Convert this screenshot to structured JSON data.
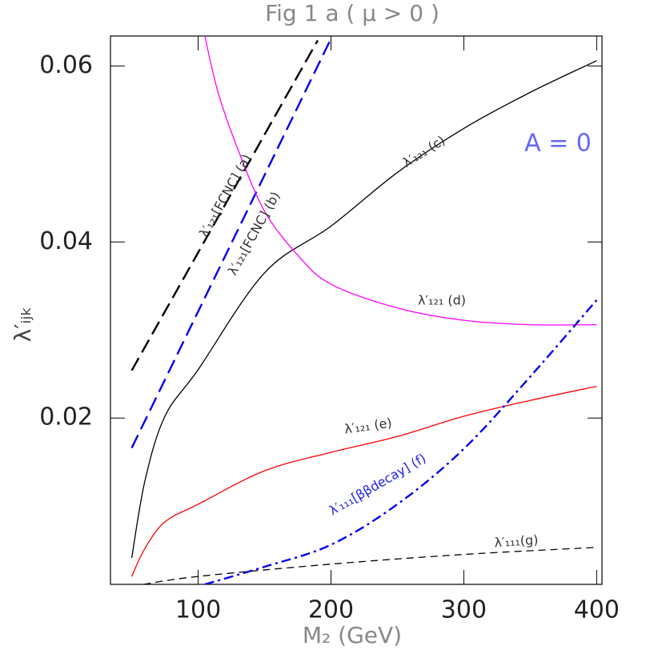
{
  "chart_data": {
    "type": "line",
    "title": "Fig 1 a ( μ > 0 )",
    "x_label": "M₂ (GeV)",
    "y_label": "λ′ᵢⱼₖ",
    "xlim": [
      34,
      404
    ],
    "ylim": [
      0.0011,
      0.0634
    ],
    "xticks": [
      100,
      200,
      300,
      400
    ],
    "yticks": [
      {
        "value": 0.02,
        "label": "0.02"
      },
      {
        "value": 0.04,
        "label": "0.04"
      },
      {
        "value": 0.06,
        "label": "0.06"
      }
    ],
    "series": [
      {
        "color": "#000000",
        "linestyle": "longdash",
        "x": [
          50,
          100,
          150,
          190
        ],
        "values": [
          0.0254,
          0.0388,
          0.0522,
          0.0629
        ]
      },
      {
        "color": "#0000ee",
        "linestyle": "longdash",
        "x": [
          50,
          100,
          150,
          200
        ],
        "values": [
          0.0166,
          0.0321,
          0.0476,
          0.0631
        ]
      },
      {
        "color": "#000000",
        "linestyle": "solid",
        "x": [
          50,
          60,
          75,
          100,
          150,
          200,
          250,
          300,
          350,
          400
        ],
        "values": [
          0.0041,
          0.0129,
          0.0202,
          0.0255,
          0.0365,
          0.0418,
          0.0479,
          0.0529,
          0.057,
          0.0606
        ]
      },
      {
        "color": "#ff00ff",
        "linestyle": "solid",
        "x": [
          105,
          115,
          130,
          150,
          175,
          200,
          250,
          300,
          350,
          400
        ],
        "values": [
          0.0634,
          0.057,
          0.0505,
          0.0435,
          0.0385,
          0.0352,
          0.0325,
          0.0311,
          0.0306,
          0.0306
        ]
      },
      {
        "color": "#ff0000",
        "linestyle": "solid",
        "x": [
          50,
          60,
          75,
          100,
          150,
          200,
          250,
          300,
          350,
          400
        ],
        "values": [
          0.002,
          0.0052,
          0.0082,
          0.0102,
          0.014,
          0.0161,
          0.0179,
          0.0202,
          0.022,
          0.0236
        ]
      },
      {
        "color": "#0000ee",
        "linestyle": "dashdot",
        "x": [
          105,
          150,
          200,
          250,
          300,
          350,
          400
        ],
        "values": [
          0.0011,
          0.0031,
          0.0056,
          0.0102,
          0.0165,
          0.0247,
          0.0334
        ]
      },
      {
        "color": "#000000",
        "linestyle": "dash",
        "x": [
          59,
          100,
          200,
          300,
          400
        ],
        "values": [
          0.0011,
          0.002,
          0.0034,
          0.0045,
          0.0053
        ]
      }
    ],
    "annotations": [
      {
        "text": "λ′₁₂₁[FCNC]  (a)",
        "color": "#333333"
      },
      {
        "text": "λ′₁₂₁[FCNC]  (b)",
        "color": "#333333"
      },
      {
        "text": "λ′₁₂₁  (c)",
        "color": "#333333"
      },
      {
        "text": "λ′₁₂₁  (d)",
        "color": "#333333"
      },
      {
        "text": "λ′₁₂₁  (e)",
        "color": "#333333"
      },
      {
        "text": "λ′₁₁₁[ββdecay]  (f)",
        "color": "#2222ee"
      },
      {
        "text": "λ′₁₁₁(g)",
        "color": "#333333"
      },
      {
        "text": "A = 0",
        "color": "#6666ff"
      }
    ]
  }
}
